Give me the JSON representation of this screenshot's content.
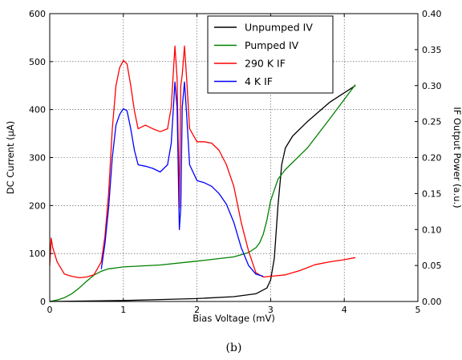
{
  "caption": "(b)",
  "chart_data": {
    "type": "line",
    "xlabel": "Bias Voltage (mV)",
    "ylabel_left": "DC Current (μA)",
    "ylabel_right": "IF Output Power (a.u.)",
    "xlim": [
      0,
      5
    ],
    "ylim_left": [
      0,
      600
    ],
    "ylim_right": [
      0,
      0.4
    ],
    "x_ticks": [
      "0",
      "1",
      "2",
      "3",
      "4",
      "5"
    ],
    "y_ticks_left": [
      "0",
      "100",
      "200",
      "300",
      "400",
      "500",
      "600"
    ],
    "y_ticks_right": [
      "0.00",
      "0.05",
      "0.10",
      "0.15",
      "0.20",
      "0.25",
      "0.30",
      "0.35",
      "0.40"
    ],
    "grid": true,
    "legend_position": "top-right",
    "series": [
      {
        "name": "Unpumped IV",
        "axis": "left",
        "color": "#000000",
        "x": [
          0,
          0.5,
          1.0,
          1.5,
          2.0,
          2.5,
          2.8,
          2.95,
          3.0,
          3.05,
          3.1,
          3.15,
          3.2,
          3.3,
          3.5,
          3.8,
          4.15
        ],
        "y": [
          0,
          1,
          2,
          4,
          6,
          10,
          16,
          28,
          45,
          90,
          200,
          285,
          320,
          345,
          375,
          415,
          450
        ]
      },
      {
        "name": "Pumped IV",
        "axis": "left",
        "color": "#008000",
        "x": [
          0,
          0.1,
          0.2,
          0.3,
          0.4,
          0.5,
          0.6,
          0.7,
          0.8,
          0.9,
          1.0,
          1.5,
          2.0,
          2.5,
          2.7,
          2.8,
          2.85,
          2.9,
          2.95,
          3.0,
          3.1,
          3.2,
          3.5,
          3.8,
          4.15
        ],
        "y": [
          0,
          3,
          8,
          16,
          28,
          42,
          55,
          63,
          68,
          70,
          72,
          76,
          84,
          93,
          102,
          112,
          122,
          140,
          170,
          210,
          255,
          275,
          320,
          380,
          452
        ]
      },
      {
        "name": "290 K IF",
        "axis": "right",
        "color": "#ff0000",
        "x": [
          0,
          0.02,
          0.04,
          0.1,
          0.2,
          0.3,
          0.4,
          0.5,
          0.6,
          0.7,
          0.75,
          0.8,
          0.85,
          0.9,
          0.95,
          1.0,
          1.05,
          1.1,
          1.15,
          1.2,
          1.3,
          1.4,
          1.5,
          1.6,
          1.65,
          1.7,
          1.73,
          1.76,
          1.78,
          1.8,
          1.83,
          1.86,
          1.9,
          2.0,
          2.1,
          2.2,
          2.3,
          2.4,
          2.5,
          2.6,
          2.7,
          2.8,
          2.9,
          3.0,
          3.2,
          3.4,
          3.6,
          3.8,
          4.0,
          4.15
        ],
        "y": [
          0.05,
          0.088,
          0.075,
          0.055,
          0.038,
          0.035,
          0.033,
          0.034,
          0.037,
          0.055,
          0.09,
          0.15,
          0.24,
          0.3,
          0.325,
          0.335,
          0.33,
          0.3,
          0.265,
          0.24,
          0.245,
          0.24,
          0.236,
          0.24,
          0.27,
          0.355,
          0.31,
          0.13,
          0.3,
          0.315,
          0.355,
          0.31,
          0.24,
          0.222,
          0.222,
          0.22,
          0.21,
          0.19,
          0.16,
          0.11,
          0.07,
          0.04,
          0.034,
          0.035,
          0.037,
          0.043,
          0.051,
          0.055,
          0.058,
          0.061
        ]
      },
      {
        "name": "4 K IF",
        "axis": "right",
        "color": "#0000ff",
        "x": [
          0.7,
          0.75,
          0.8,
          0.85,
          0.9,
          0.95,
          1.0,
          1.05,
          1.1,
          1.15,
          1.2,
          1.3,
          1.4,
          1.5,
          1.6,
          1.65,
          1.7,
          1.73,
          1.76,
          1.78,
          1.8,
          1.83,
          1.86,
          1.9,
          2.0,
          2.1,
          2.2,
          2.3,
          2.4,
          2.5,
          2.6,
          2.7,
          2.8,
          2.9
        ],
        "y": [
          0.045,
          0.08,
          0.13,
          0.2,
          0.245,
          0.26,
          0.268,
          0.265,
          0.24,
          0.21,
          0.19,
          0.188,
          0.185,
          0.18,
          0.19,
          0.22,
          0.305,
          0.27,
          0.1,
          0.13,
          0.27,
          0.305,
          0.26,
          0.19,
          0.168,
          0.165,
          0.16,
          0.15,
          0.135,
          0.11,
          0.075,
          0.05,
          0.038,
          0.035
        ]
      }
    ]
  }
}
